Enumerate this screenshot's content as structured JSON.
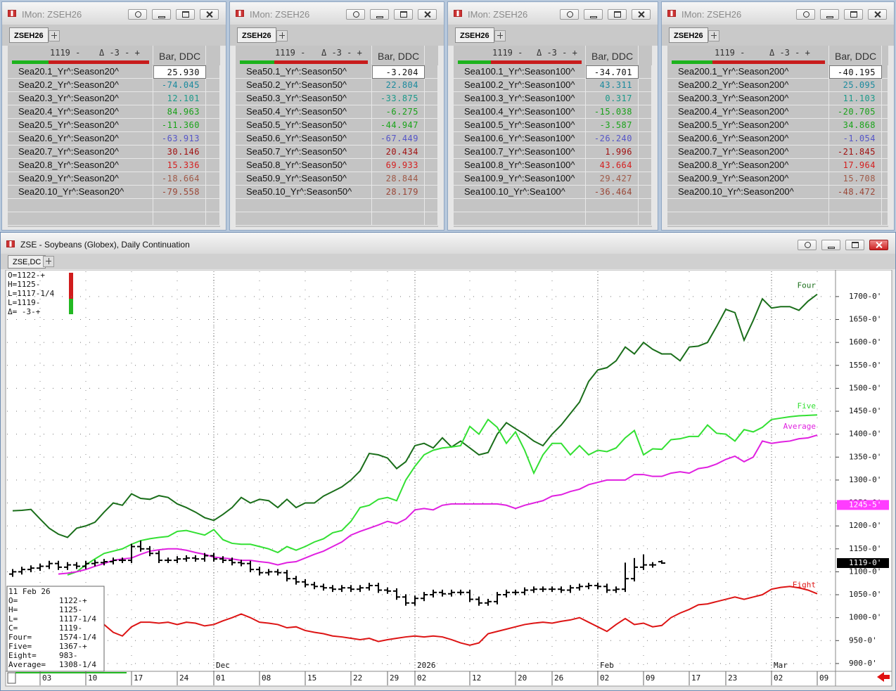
{
  "monitors": [
    {
      "title": "IMon: ZSEH26",
      "tab": "ZSEH26",
      "price": "1119 -",
      "delta": "Δ -3 - +",
      "column": "Bar, DDC",
      "rows": [
        [
          "Sea20.1_Yr^:Season20^",
          "25.930"
        ],
        [
          "Sea20.2_Yr^:Season20^",
          "-74.045"
        ],
        [
          "Sea20.3_Yr^:Season20^",
          "12.101"
        ],
        [
          "Sea20.4_Yr^:Season20^",
          "84.963"
        ],
        [
          "Sea20.5_Yr^:Season20^",
          "-11.360"
        ],
        [
          "Sea20.6_Yr^:Season20^",
          "-63.913"
        ],
        [
          "Sea20.7_Yr^:Season20^",
          "30.146"
        ],
        [
          "Sea20.8_Yr^:Season20^",
          "15.336"
        ],
        [
          "Sea20.9_Yr^:Season20^",
          "-18.664"
        ],
        [
          "Sea20.10_Yr^:Season20^",
          "-79.558"
        ]
      ]
    },
    {
      "title": "IMon: ZSEH26",
      "tab": "ZSEH26",
      "price": "1119 -",
      "delta": "Δ -3 - +",
      "column": "Bar, DDC",
      "rows": [
        [
          "Sea50.1_Yr^:Season50^",
          "-3.204"
        ],
        [
          "Sea50.2_Yr^:Season50^",
          "22.804"
        ],
        [
          "Sea50.3_Yr^:Season50^",
          "-33.875"
        ],
        [
          "Sea50.4_Yr^:Season50^",
          "-6.275"
        ],
        [
          "Sea50.5_Yr^:Season50^",
          "-44.947"
        ],
        [
          "Sea50.6_Yr^:Season50^",
          "-67.449"
        ],
        [
          "Sea50.7_Yr^:Season50^",
          "20.434"
        ],
        [
          "Sea50.8_Yr^:Season50^",
          "69.933"
        ],
        [
          "Sea50.9_Yr^:Season50^",
          "28.844"
        ],
        [
          "Sea50.10_Yr^:Season50^",
          "28.179"
        ]
      ]
    },
    {
      "title": "IMon: ZSEH26",
      "tab": "ZSEH26",
      "price": "1119 -",
      "delta": "Δ -3 - +",
      "column": "Bar, DDC",
      "rows": [
        [
          "Sea100.1_Yr^:Season100^",
          "-34.701"
        ],
        [
          "Sea100.2_Yr^:Season100^",
          "43.311"
        ],
        [
          "Sea100.3_Yr^:Season100^",
          "0.317"
        ],
        [
          "Sea100.4_Yr^:Season100^",
          "-15.038"
        ],
        [
          "Sea100.5_Yr^:Season100^",
          "-3.587"
        ],
        [
          "Sea100.6_Yr^:Season100^",
          "-26.240"
        ],
        [
          "Sea100.7_Yr^:Season100^",
          "1.996"
        ],
        [
          "Sea100.8_Yr^:Season100^",
          "43.664"
        ],
        [
          "Sea100.9_Yr^:Season100^",
          "29.427"
        ],
        [
          "Sea100.10_Yr^:Sea100^",
          "-36.464"
        ]
      ]
    },
    {
      "title": "IMon: ZSEH26",
      "tab": "ZSEH26",
      "price": "1119 -",
      "delta": "Δ -3 - +",
      "column": "Bar, DDC",
      "rows": [
        [
          "Sea200.1_Yr^:Season200^",
          "-40.195"
        ],
        [
          "Sea200.2_Yr^:Season200^",
          "25.095"
        ],
        [
          "Sea200.3_Yr^:Season200^",
          "11.103"
        ],
        [
          "Sea200.4_Yr^:Season200^",
          "-20.705"
        ],
        [
          "Sea200.5_Yr^:Season200^",
          "34.868"
        ],
        [
          "Sea200.6_Yr^:Season200^",
          "-1.054"
        ],
        [
          "Sea200.7_Yr^:Season200^",
          "-21.845"
        ],
        [
          "Sea200.8_Yr^:Season200^",
          "17.964"
        ],
        [
          "Sea200.9_Yr^:Season200^",
          "15.708"
        ],
        [
          "Sea200.10_Yr^:Season200^",
          "-48.472"
        ]
      ]
    }
  ],
  "chart_window": {
    "title": "ZSE - Soybeans (Globex), Daily Continuation",
    "tab": "ZSE,DC"
  },
  "chart_data": {
    "type": "line",
    "categories": [
      null,
      null,
      null,
      "03",
      null,
      null,
      null,
      null,
      "10",
      null,
      null,
      null,
      null,
      "17",
      null,
      null,
      null,
      null,
      "24",
      null,
      null,
      null,
      "01",
      null,
      null,
      null,
      null,
      "08",
      null,
      null,
      null,
      null,
      "15",
      null,
      null,
      null,
      null,
      "22",
      null,
      null,
      null,
      "29",
      null,
      null,
      "02",
      null,
      null,
      null,
      null,
      null,
      "12",
      null,
      null,
      null,
      null,
      "20",
      null,
      null,
      null,
      "26",
      null,
      null,
      null,
      null,
      "02",
      null,
      null,
      null,
      null,
      "09",
      null,
      null,
      null,
      null,
      "17",
      null,
      null,
      null,
      "23",
      null,
      null,
      null,
      null,
      "02",
      null,
      null,
      null,
      null,
      "09"
    ],
    "month_labels": [
      {
        "label": "Dec",
        "at": 22
      },
      {
        "label": "2026",
        "at": 44
      },
      {
        "label": "Feb",
        "at": 64
      },
      {
        "label": "Mar",
        "at": 83
      }
    ],
    "ylim": [
      883,
      1755
    ],
    "yticks": [
      {
        "value": 900,
        "label": "900-0'"
      },
      {
        "value": 950,
        "label": "950-0'"
      },
      {
        "value": 1000,
        "label": "1000-0'"
      },
      {
        "value": 1050,
        "label": "1050-0'"
      },
      {
        "value": 1100,
        "label": "1100-0'"
      },
      {
        "value": 1150,
        "label": "1150-0'"
      },
      {
        "value": 1200,
        "label": "1200-0'"
      },
      {
        "value": 1250,
        "label": "1250-0'"
      },
      {
        "value": 1300,
        "label": "1300-0'"
      },
      {
        "value": 1350,
        "label": "1350-0'"
      },
      {
        "value": 1400,
        "label": "1400-0'"
      },
      {
        "value": 1450,
        "label": "1450-0'"
      },
      {
        "value": 1500,
        "label": "1500-0'"
      },
      {
        "value": 1550,
        "label": "1550-0'"
      },
      {
        "value": 1600,
        "label": "1600-0'"
      },
      {
        "value": 1650,
        "label": "1650-0'"
      },
      {
        "value": 1700,
        "label": "1700-0'"
      }
    ],
    "grid": true,
    "series": [
      {
        "name": "Four",
        "color": "#1a6e1a",
        "values": [
          1233,
          1234,
          1236,
          1215,
          1195,
          1182,
          1175,
          1195,
          1200,
          1208,
          1230,
          1250,
          1245,
          1270,
          1260,
          1258,
          1266,
          1262,
          1248,
          1240,
          1230,
          1218,
          1212,
          1225,
          1240,
          1262,
          1250,
          1258,
          1255,
          1240,
          1258,
          1240,
          1250,
          1250,
          1265,
          1275,
          1285,
          1300,
          1320,
          1358,
          1355,
          1348,
          1325,
          1340,
          1375,
          1380,
          1370,
          1392,
          1372,
          1385,
          1370,
          1355,
          1360,
          1400,
          1425,
          1412,
          1400,
          1385,
          1375,
          1400,
          1420,
          1445,
          1470,
          1515,
          1540,
          1545,
          1560,
          1590,
          1575,
          1600,
          1585,
          1575,
          1575,
          1560,
          1590,
          1592,
          1600,
          1635,
          1672,
          1665,
          1605,
          1648,
          1695,
          1675,
          1678,
          1678,
          1670,
          1690,
          1705
        ]
      },
      {
        "name": "Five",
        "color": "#33e033",
        "values": [
          null,
          null,
          null,
          null,
          null,
          null,
          1093,
          1100,
          1115,
          1128,
          1140,
          1145,
          1150,
          1160,
          1168,
          1172,
          1175,
          1177,
          1188,
          1190,
          1185,
          1180,
          1192,
          1170,
          1162,
          1160,
          1160,
          1155,
          1150,
          1142,
          1155,
          1147,
          1155,
          1165,
          1172,
          1185,
          1190,
          1210,
          1240,
          1245,
          1258,
          1262,
          1255,
          1300,
          1330,
          1355,
          1365,
          1370,
          1372,
          1375,
          1417,
          1400,
          1432,
          1415,
          1380,
          1405,
          1365,
          1315,
          1355,
          1380,
          1380,
          1355,
          1375,
          1355,
          1365,
          1362,
          1370,
          1392,
          1408,
          1355,
          1368,
          1367,
          1388,
          1390,
          1395,
          1395,
          1420,
          1402,
          1400,
          1385,
          1410,
          1405,
          1415,
          1432,
          1435,
          1438,
          1440,
          1441,
          1442
        ]
      },
      {
        "name": "Average",
        "color": "#e020e0",
        "values": [
          null,
          null,
          null,
          null,
          null,
          1095,
          1097,
          1100,
          1105,
          1112,
          1118,
          1125,
          1128,
          1130,
          1138,
          1145,
          1148,
          1150,
          1150,
          1147,
          1142,
          1138,
          1132,
          1130,
          1128,
          1125,
          1125,
          1122,
          1120,
          1115,
          1120,
          1122,
          1130,
          1138,
          1145,
          1155,
          1165,
          1180,
          1188,
          1195,
          1202,
          1210,
          1205,
          1215,
          1235,
          1238,
          1235,
          1245,
          1248,
          1248,
          1248,
          1248,
          1248,
          1248,
          1245,
          1238,
          1245,
          1250,
          1255,
          1265,
          1268,
          1275,
          1280,
          1290,
          1295,
          1300,
          1300,
          1300,
          1312,
          1312,
          1308,
          1308,
          1315,
          1318,
          1315,
          1325,
          1328,
          1335,
          1345,
          1352,
          1340,
          1350,
          1385,
          1380,
          1383,
          1385,
          1390,
          1392,
          1398
        ]
      },
      {
        "name": "Eight",
        "color": "#dd1414",
        "values": [
          null,
          null,
          null,
          null,
          null,
          null,
          null,
          null,
          null,
          null,
          985,
          968,
          960,
          980,
          990,
          990,
          988,
          990,
          985,
          990,
          988,
          982,
          985,
          993,
          1000,
          1008,
          1000,
          990,
          988,
          985,
          978,
          980,
          972,
          968,
          965,
          960,
          958,
          955,
          952,
          955,
          948,
          952,
          955,
          958,
          960,
          958,
          960,
          958,
          952,
          945,
          940,
          945,
          965,
          970,
          975,
          980,
          985,
          988,
          990,
          988,
          992,
          995,
          1000,
          990,
          980,
          970,
          985,
          998,
          985,
          988,
          980,
          983,
          1000,
          1010,
          1018,
          1028,
          1030,
          1035,
          1040,
          1045,
          1040,
          1045,
          1050,
          1062,
          1066,
          1068,
          1065,
          1060,
          1052
        ]
      }
    ],
    "bars": {
      "color": "#000000",
      "open": [
        1095,
        1100,
        1105,
        1108,
        1112,
        1118,
        1110,
        1115,
        1112,
        1118,
        1120,
        1122,
        1125,
        1125,
        1155,
        1150,
        1140,
        1125,
        1125,
        1128,
        1130,
        1128,
        1135,
        1128,
        1125,
        1120,
        1118,
        1105,
        1098,
        1100,
        1098,
        1085,
        1078,
        1072,
        1068,
        1065,
        1062,
        1065,
        1062,
        1065,
        1070,
        1060,
        1058,
        1045,
        1032,
        1042,
        1050,
        1055,
        1052,
        1055,
        1055,
        1040,
        1032,
        1035,
        1050,
        1055,
        1055,
        1060,
        1062,
        1062,
        1062,
        1060,
        1065,
        1068,
        1070,
        1068,
        1060,
        1062,
        1085,
        1110,
        1115,
        1122
      ],
      "high": [
        1106,
        1111,
        1114,
        1118,
        1124,
        1124,
        1121,
        1121,
        1124,
        1126,
        1128,
        1131,
        1131,
        1161,
        1168,
        1156,
        1146,
        1131,
        1134,
        1136,
        1136,
        1141,
        1141,
        1134,
        1131,
        1126,
        1124,
        1111,
        1106,
        1106,
        1104,
        1091,
        1084,
        1078,
        1074,
        1071,
        1071,
        1071,
        1071,
        1076,
        1076,
        1066,
        1064,
        1051,
        1048,
        1056,
        1061,
        1061,
        1061,
        1061,
        1061,
        1046,
        1041,
        1056,
        1061,
        1061,
        1066,
        1068,
        1068,
        1068,
        1068,
        1071,
        1074,
        1076,
        1076,
        1074,
        1068,
        1120,
        1130,
        1138,
        1121,
        1125
      ],
      "low": [
        1089,
        1094,
        1099,
        1102,
        1106,
        1104,
        1104,
        1106,
        1106,
        1112,
        1114,
        1116,
        1119,
        1119,
        1144,
        1134,
        1119,
        1119,
        1119,
        1122,
        1122,
        1122,
        1122,
        1119,
        1114,
        1112,
        1099,
        1092,
        1092,
        1092,
        1079,
        1072,
        1066,
        1062,
        1059,
        1056,
        1056,
        1056,
        1056,
        1059,
        1054,
        1052,
        1039,
        1026,
        1026,
        1036,
        1044,
        1046,
        1046,
        1049,
        1034,
        1026,
        1026,
        1029,
        1044,
        1049,
        1049,
        1054,
        1056,
        1056,
        1054,
        1054,
        1059,
        1062,
        1062,
        1054,
        1054,
        1056,
        1079,
        1104,
        1109,
        1117.25
      ],
      "close": [
        1100,
        1105,
        1108,
        1112,
        1118,
        1110,
        1115,
        1112,
        1118,
        1120,
        1122,
        1125,
        1125,
        1155,
        1150,
        1140,
        1125,
        1125,
        1128,
        1130,
        1128,
        1135,
        1128,
        1125,
        1120,
        1118,
        1105,
        1098,
        1100,
        1098,
        1085,
        1078,
        1072,
        1068,
        1065,
        1062,
        1065,
        1062,
        1065,
        1070,
        1060,
        1058,
        1045,
        1032,
        1042,
        1050,
        1055,
        1052,
        1055,
        1055,
        1040,
        1032,
        1035,
        1050,
        1055,
        1055,
        1060,
        1062,
        1062,
        1062,
        1060,
        1065,
        1068,
        1070,
        1068,
        1060,
        1062,
        1085,
        1110,
        1115,
        1115,
        1119
      ]
    },
    "price_tags": [
      {
        "value": 1245.625,
        "label": "1245-5'",
        "color": "#ff3cff"
      },
      {
        "value": 1119,
        "label": "1119-0'",
        "color": "#000000"
      }
    ],
    "readout": [
      "O=1122-+",
      "H=1125-",
      "L=1117-1/4",
      "L=1119-",
      "Δ=  -3-+"
    ],
    "cursor_box": {
      "date": "11 Feb 26",
      "rows": [
        [
          "O=",
          "1122-+"
        ],
        [
          "H=",
          "1125-"
        ],
        [
          "L=",
          "1117-1/4"
        ],
        [
          "C=",
          "1119-"
        ],
        [
          "Four=",
          "1574-1/4"
        ],
        [
          "Five=",
          "1367-+"
        ],
        [
          "Eight=",
          "983-"
        ],
        [
          "Average=",
          "1308-1/4"
        ]
      ]
    }
  }
}
